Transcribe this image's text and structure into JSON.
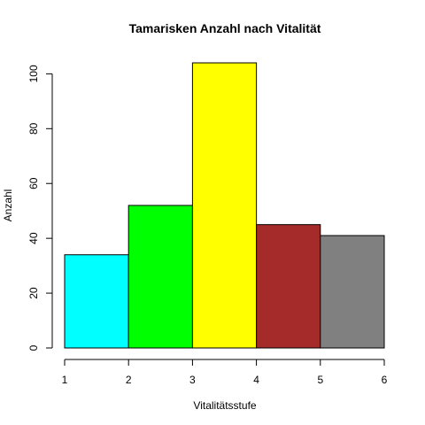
{
  "chart_data": {
    "type": "bar",
    "title": "Tamarisken Anzahl nach Vitalität",
    "xlabel": "Vitalitätsstufe",
    "ylabel": "Anzahl",
    "x_ticks": [
      1,
      2,
      3,
      4,
      5,
      6
    ],
    "y_ticks": [
      0,
      20,
      40,
      60,
      80,
      100
    ],
    "xlim": [
      1,
      6
    ],
    "ylim": [
      0,
      104
    ],
    "bars": [
      {
        "x_start": 1,
        "x_end": 2,
        "value": 34,
        "color": "#00FFFF"
      },
      {
        "x_start": 2,
        "x_end": 3,
        "value": 52,
        "color": "#00FF00"
      },
      {
        "x_start": 3,
        "x_end": 4,
        "value": 104,
        "color": "#FFFF00"
      },
      {
        "x_start": 4,
        "x_end": 5,
        "value": 45,
        "color": "#A52A2A"
      },
      {
        "x_start": 5,
        "x_end": 6,
        "value": 41,
        "color": "#808080"
      }
    ],
    "grid": false,
    "legend": "none"
  }
}
